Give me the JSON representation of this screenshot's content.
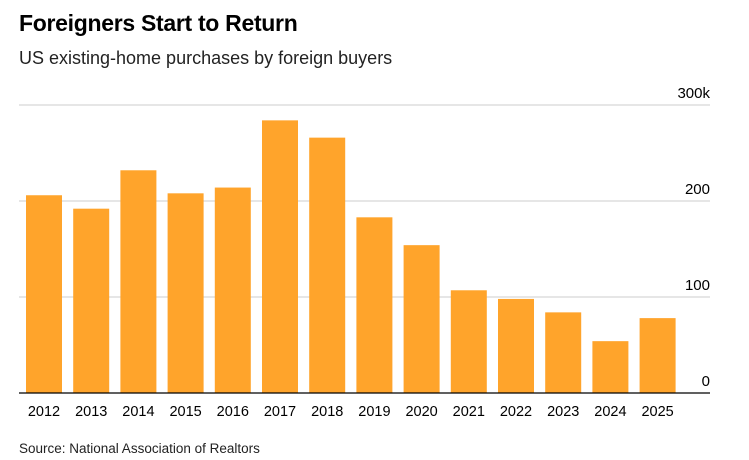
{
  "title": "Foreigners Start to Return",
  "subtitle": "US existing-home purchases by foreign buyers",
  "source": "Source: National Association of Realtors",
  "colors": {
    "bar": "#FFA42B",
    "grid": "#cccccc",
    "axis": "#000000"
  },
  "chart_data": {
    "type": "bar",
    "categories": [
      "2012",
      "2013",
      "2014",
      "2015",
      "2016",
      "2017",
      "2018",
      "2019",
      "2020",
      "2021",
      "2022",
      "2023",
      "2024",
      "2025"
    ],
    "values": [
      206,
      192,
      232,
      208,
      214,
      284,
      266,
      183,
      154,
      107,
      98,
      84,
      54,
      78
    ],
    "ylim": [
      0,
      300
    ],
    "yticks": [
      0,
      100,
      200,
      300
    ],
    "ytick_labels": [
      "0",
      "100",
      "200",
      "300k"
    ],
    "grid": true,
    "yaxis_position": "right"
  }
}
